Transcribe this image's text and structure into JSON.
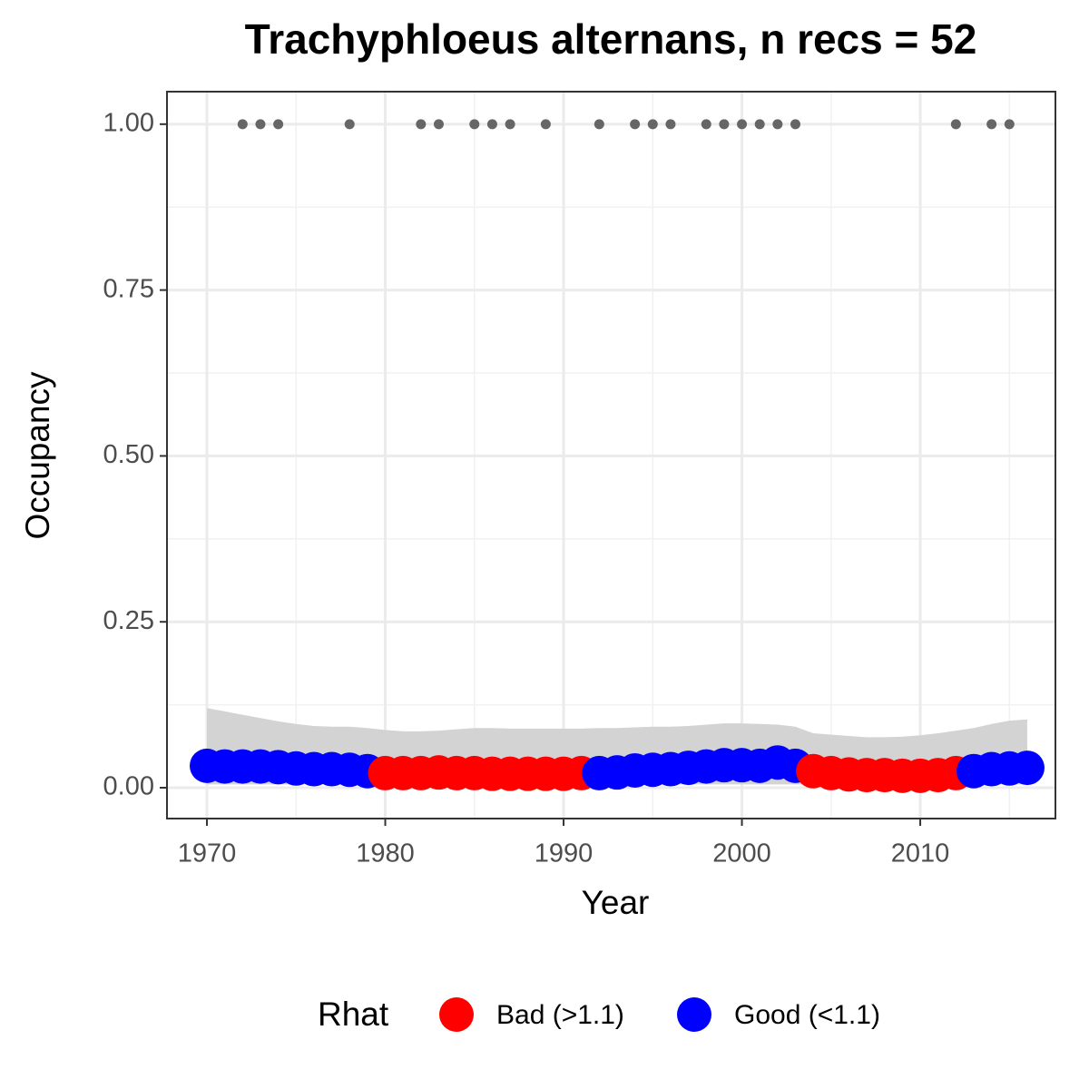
{
  "chart_data": {
    "type": "line",
    "title": "Trachyphloeus alternans, n recs = 52",
    "xlabel": "Year",
    "ylabel": "Occupancy",
    "x": [
      1970,
      1971,
      1972,
      1973,
      1974,
      1975,
      1976,
      1977,
      1978,
      1979,
      1980,
      1981,
      1982,
      1983,
      1984,
      1985,
      1986,
      1987,
      1988,
      1989,
      1990,
      1991,
      1992,
      1993,
      1994,
      1995,
      1996,
      1997,
      1998,
      1999,
      2000,
      2001,
      2002,
      2003,
      2004,
      2005,
      2006,
      2007,
      2008,
      2009,
      2010,
      2011,
      2012,
      2013,
      2014,
      2015,
      2016
    ],
    "values": [
      0.033,
      0.032,
      0.032,
      0.032,
      0.031,
      0.029,
      0.028,
      0.028,
      0.027,
      0.025,
      0.022,
      0.022,
      0.022,
      0.023,
      0.022,
      0.022,
      0.021,
      0.021,
      0.021,
      0.021,
      0.021,
      0.022,
      0.022,
      0.023,
      0.026,
      0.027,
      0.028,
      0.03,
      0.032,
      0.034,
      0.034,
      0.033,
      0.038,
      0.033,
      0.025,
      0.022,
      0.02,
      0.019,
      0.019,
      0.018,
      0.018,
      0.019,
      0.022,
      0.025,
      0.028,
      0.029,
      0.03
    ],
    "rhat": [
      "Good (<1.1)",
      "Good (<1.1)",
      "Good (<1.1)",
      "Good (<1.1)",
      "Good (<1.1)",
      "Good (<1.1)",
      "Good (<1.1)",
      "Good (<1.1)",
      "Good (<1.1)",
      "Good (<1.1)",
      "Bad (>1.1)",
      "Bad (>1.1)",
      "Bad (>1.1)",
      "Bad (>1.1)",
      "Bad (>1.1)",
      "Bad (>1.1)",
      "Bad (>1.1)",
      "Bad (>1.1)",
      "Bad (>1.1)",
      "Bad (>1.1)",
      "Bad (>1.1)",
      "Bad (>1.1)",
      "Good (<1.1)",
      "Good (<1.1)",
      "Good (<1.1)",
      "Good (<1.1)",
      "Good (<1.1)",
      "Good (<1.1)",
      "Good (<1.1)",
      "Good (<1.1)",
      "Good (<1.1)",
      "Good (<1.1)",
      "Good (<1.1)",
      "Good (<1.1)",
      "Bad (>1.1)",
      "Bad (>1.1)",
      "Bad (>1.1)",
      "Bad (>1.1)",
      "Bad (>1.1)",
      "Bad (>1.1)",
      "Bad (>1.1)",
      "Bad (>1.1)",
      "Bad (>1.1)",
      "Good (<1.1)",
      "Good (<1.1)",
      "Good (<1.1)",
      "Good (<1.1)"
    ],
    "upper": [
      0.12,
      0.115,
      0.11,
      0.105,
      0.1,
      0.096,
      0.093,
      0.092,
      0.092,
      0.09,
      0.087,
      0.085,
      0.085,
      0.086,
      0.088,
      0.09,
      0.09,
      0.089,
      0.089,
      0.089,
      0.089,
      0.089,
      0.09,
      0.09,
      0.091,
      0.092,
      0.092,
      0.093,
      0.095,
      0.097,
      0.097,
      0.096,
      0.095,
      0.092,
      0.082,
      0.08,
      0.078,
      0.076,
      0.076,
      0.077,
      0.079,
      0.082,
      0.086,
      0.09,
      0.096,
      0.101,
      0.103
    ],
    "lower": [
      0.005,
      0.005,
      0.005,
      0.005,
      0.005,
      0.005,
      0.005,
      0.005,
      0.005,
      0.005,
      0.005,
      0.005,
      0.005,
      0.005,
      0.005,
      0.005,
      0.005,
      0.005,
      0.005,
      0.005,
      0.005,
      0.005,
      0.005,
      0.005,
      0.005,
      0.005,
      0.005,
      0.005,
      0.005,
      0.005,
      0.005,
      0.005,
      0.005,
      0.005,
      0.005,
      0.005,
      0.005,
      0.005,
      0.005,
      0.005,
      0.005,
      0.005,
      0.005,
      0.005,
      0.005,
      0.005,
      0.005
    ],
    "records_x": [
      1972,
      1973,
      1974,
      1978,
      1982,
      1983,
      1985,
      1986,
      1987,
      1989,
      1992,
      1994,
      1995,
      1996,
      1998,
      1999,
      2000,
      2001,
      2002,
      2003,
      2012,
      2014,
      2015
    ],
    "records_y": [
      1,
      1,
      1,
      1,
      1,
      1,
      1,
      1,
      1,
      1,
      1,
      1,
      1,
      1,
      1,
      1,
      1,
      1,
      1,
      1,
      1,
      1,
      1
    ],
    "records_color": "#666666",
    "ribbon_color": "#d3d3d3",
    "legend": {
      "title": "Rhat",
      "position": "bottom",
      "entries": [
        {
          "name": "Bad (>1.1)",
          "color": "#ff0000"
        },
        {
          "name": "Good (<1.1)",
          "color": "#0000ff"
        }
      ]
    },
    "xlim": [
      1967.76,
      2017.58
    ],
    "ylim": [
      -0.0465,
      1.049
    ],
    "xticks": [
      1970,
      1980,
      1990,
      2000,
      2010
    ],
    "xminorticks": [
      1975,
      1985,
      1995,
      2005,
      2015
    ],
    "yticks": [
      {
        "value": 0,
        "label": "0.00"
      },
      0.25,
      {
        "value": 0.5,
        "label": "0.50"
      },
      0.75,
      {
        "value": 1,
        "label": "1.00"
      }
    ],
    "yminorticks": [
      0.125,
      0.375,
      0.625,
      0.875
    ],
    "grid": true
  }
}
